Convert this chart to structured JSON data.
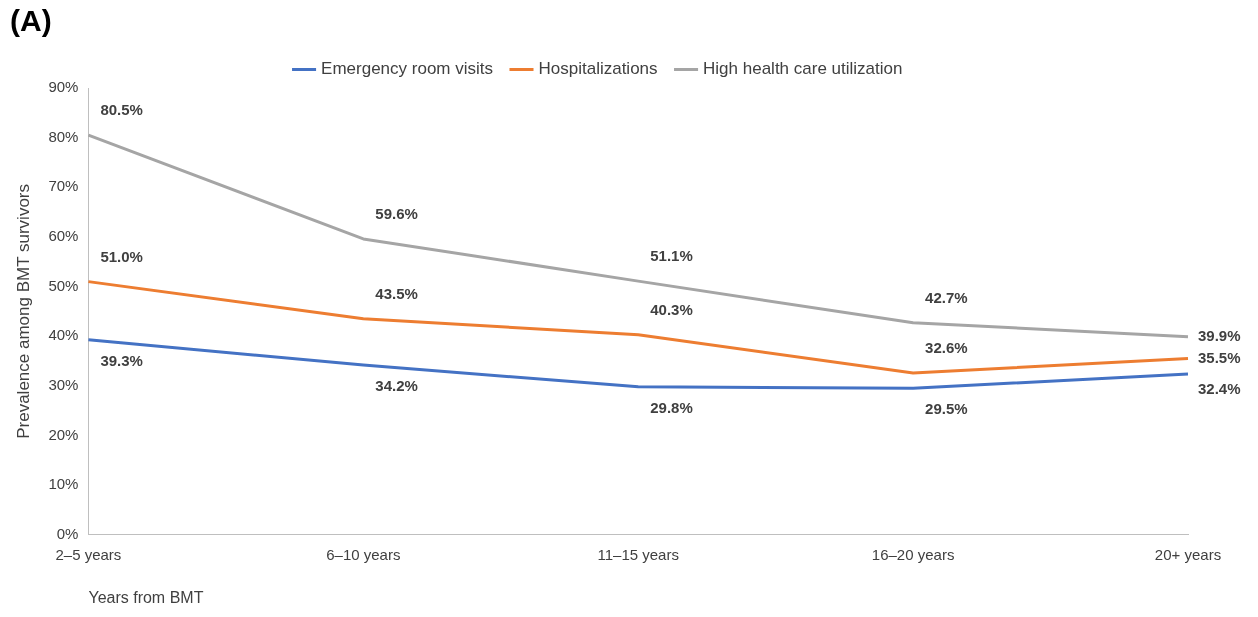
{
  "chart_data": {
    "type": "line",
    "title": "(A)",
    "xlabel": "Years from BMT",
    "ylabel": "Prevalence among BMT survivors",
    "categories": [
      "2–5 years",
      "6–10 years",
      "11–15 years",
      "16–20 years",
      "20+ years"
    ],
    "series": [
      {
        "name": "Emergency room visits",
        "color": "#4472c4",
        "values": [
          39.3,
          34.2,
          29.8,
          29.5,
          32.4
        ],
        "value_labels": [
          "39.3%",
          "34.2%",
          "29.8%",
          "29.5%",
          "32.4%"
        ]
      },
      {
        "name": "Hospitalizations",
        "color": "#ed7d31",
        "values": [
          51.0,
          43.5,
          40.3,
          32.6,
          35.5
        ],
        "value_labels": [
          "51.0%",
          "43.5%",
          "40.3%",
          "32.6%",
          "35.5%"
        ]
      },
      {
        "name": "High health care utilization",
        "color": "#a5a5a5",
        "values": [
          80.5,
          59.6,
          51.1,
          42.7,
          39.9
        ],
        "value_labels": [
          "80.5%",
          "59.6%",
          "51.1%",
          "42.7%",
          "39.9%"
        ]
      }
    ],
    "ylim": [
      0,
      90
    ],
    "yticks": [
      {
        "value": 0,
        "label": "0%"
      },
      {
        "value": 10,
        "label": "10%"
      },
      {
        "value": 20,
        "label": "20%"
      },
      {
        "value": 30,
        "label": "30%"
      },
      {
        "value": 40,
        "label": "40%"
      },
      {
        "value": 50,
        "label": "50%"
      },
      {
        "value": 60,
        "label": "60%"
      },
      {
        "value": 70,
        "label": "70%"
      },
      {
        "value": 80,
        "label": "80%"
      },
      {
        "value": 90,
        "label": "90%"
      }
    ],
    "grid": false,
    "legend": "top",
    "marker": "none",
    "line_style": "solid"
  }
}
